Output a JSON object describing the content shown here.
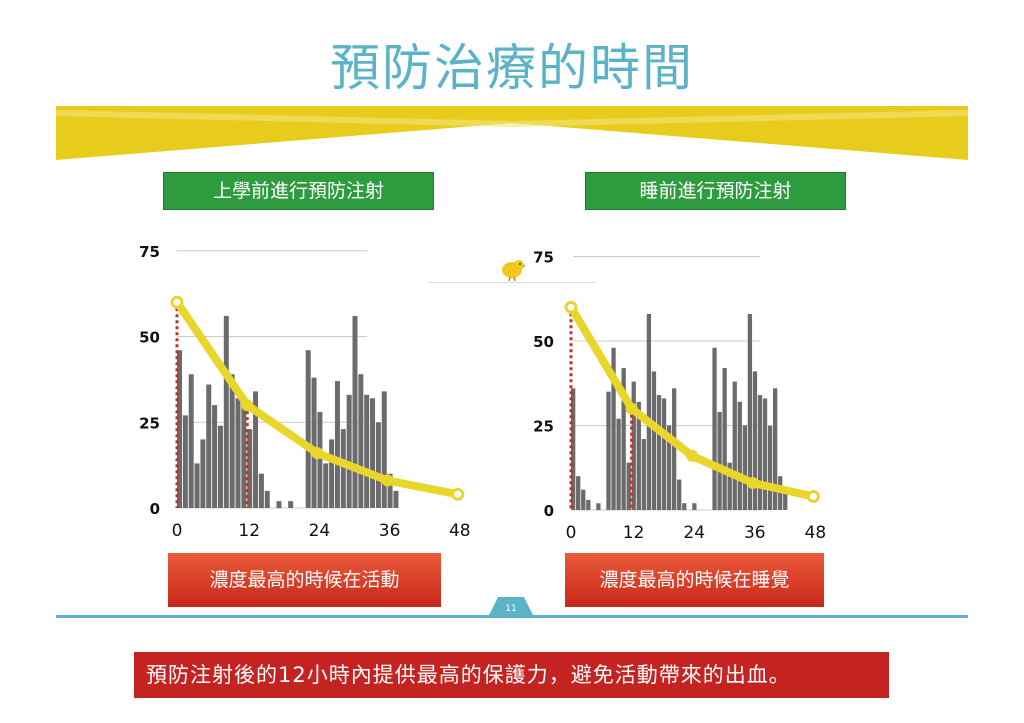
{
  "slide": {
    "title": "預防治療的時間",
    "page_number": "11",
    "footer_message": "預防注射後的12小時內提供最高的保護力，避免活動帶來的出血。"
  },
  "colors": {
    "title": "#5bb3c8",
    "ribbon": "#e8cc1c",
    "green_label": "#2e9b3f",
    "red_label": "#d63a22",
    "bar": "#6b6b6d",
    "curve": "#e8d62a",
    "dotted_line": "#c0302a",
    "divider": "#5bb3c8"
  },
  "icons": {
    "bird": "bird-icon"
  },
  "panels": [
    {
      "label": "上學前進行預防注射",
      "activity_label": "濃度最高的時候在活動"
    },
    {
      "label": "睡前進行預防注射",
      "activity_label": "濃度最高的時候在睡覺"
    }
  ],
  "chart_data": [
    {
      "type": "bar",
      "x_tick_labels": [
        "0",
        "12",
        "24",
        "36",
        "48"
      ],
      "y_tick_labels": [
        "0",
        "25",
        "50",
        "75"
      ],
      "ylim": [
        0,
        75
      ],
      "xlim": [
        0,
        60
      ],
      "grid": true,
      "bars": [
        {
          "x": 0,
          "value": 46
        },
        {
          "x": 1,
          "value": 27
        },
        {
          "x": 2,
          "value": 39
        },
        {
          "x": 3,
          "value": 13
        },
        {
          "x": 4,
          "value": 20
        },
        {
          "x": 5,
          "value": 36
        },
        {
          "x": 6,
          "value": 30
        },
        {
          "x": 7,
          "value": 24
        },
        {
          "x": 8,
          "value": 56
        },
        {
          "x": 9,
          "value": 39
        },
        {
          "x": 10,
          "value": 32
        },
        {
          "x": 11,
          "value": 31
        },
        {
          "x": 12,
          "value": 23
        },
        {
          "x": 13,
          "value": 34
        },
        {
          "x": 14,
          "value": 10
        },
        {
          "x": 15,
          "value": 5
        },
        {
          "x": 17,
          "value": 2
        },
        {
          "x": 19,
          "value": 2
        },
        {
          "x": 22,
          "value": 46
        },
        {
          "x": 23,
          "value": 38
        },
        {
          "x": 24,
          "value": 28
        },
        {
          "x": 25,
          "value": 13
        },
        {
          "x": 26,
          "value": 20
        },
        {
          "x": 27,
          "value": 37
        },
        {
          "x": 28,
          "value": 23
        },
        {
          "x": 29,
          "value": 33
        },
        {
          "x": 30,
          "value": 56
        },
        {
          "x": 31,
          "value": 39
        },
        {
          "x": 32,
          "value": 33
        },
        {
          "x": 33,
          "value": 32
        },
        {
          "x": 34,
          "value": 25
        },
        {
          "x": 35,
          "value": 34
        },
        {
          "x": 36,
          "value": 10
        },
        {
          "x": 37,
          "value": 5
        }
      ],
      "curve": {
        "x": [
          0,
          12,
          24,
          36,
          48
        ],
        "y": [
          60,
          30,
          16,
          8,
          4
        ]
      },
      "marker_lines": [
        0,
        12
      ]
    },
    {
      "type": "bar",
      "x_tick_labels": [
        "0",
        "12",
        "24",
        "36",
        "48"
      ],
      "y_tick_labels": [
        "0",
        "25",
        "50",
        "75"
      ],
      "ylim": [
        0,
        75
      ],
      "xlim": [
        0,
        60
      ],
      "grid": true,
      "bars": [
        {
          "x": 0,
          "value": 36
        },
        {
          "x": 1,
          "value": 10
        },
        {
          "x": 2,
          "value": 6
        },
        {
          "x": 3,
          "value": 3
        },
        {
          "x": 5,
          "value": 2
        },
        {
          "x": 7,
          "value": 35
        },
        {
          "x": 8,
          "value": 48
        },
        {
          "x": 9,
          "value": 27
        },
        {
          "x": 10,
          "value": 42
        },
        {
          "x": 11,
          "value": 14
        },
        {
          "x": 12,
          "value": 38
        },
        {
          "x": 13,
          "value": 32
        },
        {
          "x": 14,
          "value": 21
        },
        {
          "x": 15,
          "value": 58
        },
        {
          "x": 16,
          "value": 41
        },
        {
          "x": 17,
          "value": 34
        },
        {
          "x": 18,
          "value": 33
        },
        {
          "x": 19,
          "value": 25
        },
        {
          "x": 20,
          "value": 36
        },
        {
          "x": 21,
          "value": 9
        },
        {
          "x": 22,
          "value": 2
        },
        {
          "x": 24,
          "value": 2
        },
        {
          "x": 28,
          "value": 48
        },
        {
          "x": 29,
          "value": 29
        },
        {
          "x": 30,
          "value": 42
        },
        {
          "x": 31,
          "value": 14
        },
        {
          "x": 32,
          "value": 38
        },
        {
          "x": 33,
          "value": 32
        },
        {
          "x": 34,
          "value": 25
        },
        {
          "x": 35,
          "value": 58
        },
        {
          "x": 36,
          "value": 41
        },
        {
          "x": 37,
          "value": 34
        },
        {
          "x": 38,
          "value": 33
        },
        {
          "x": 39,
          "value": 25
        },
        {
          "x": 40,
          "value": 36
        },
        {
          "x": 41,
          "value": 10
        },
        {
          "x": 42,
          "value": 6
        }
      ],
      "curve": {
        "x": [
          0,
          12,
          24,
          36,
          48
        ],
        "y": [
          60,
          30,
          16,
          8,
          4
        ]
      },
      "marker_lines": [
        0,
        12
      ]
    }
  ]
}
